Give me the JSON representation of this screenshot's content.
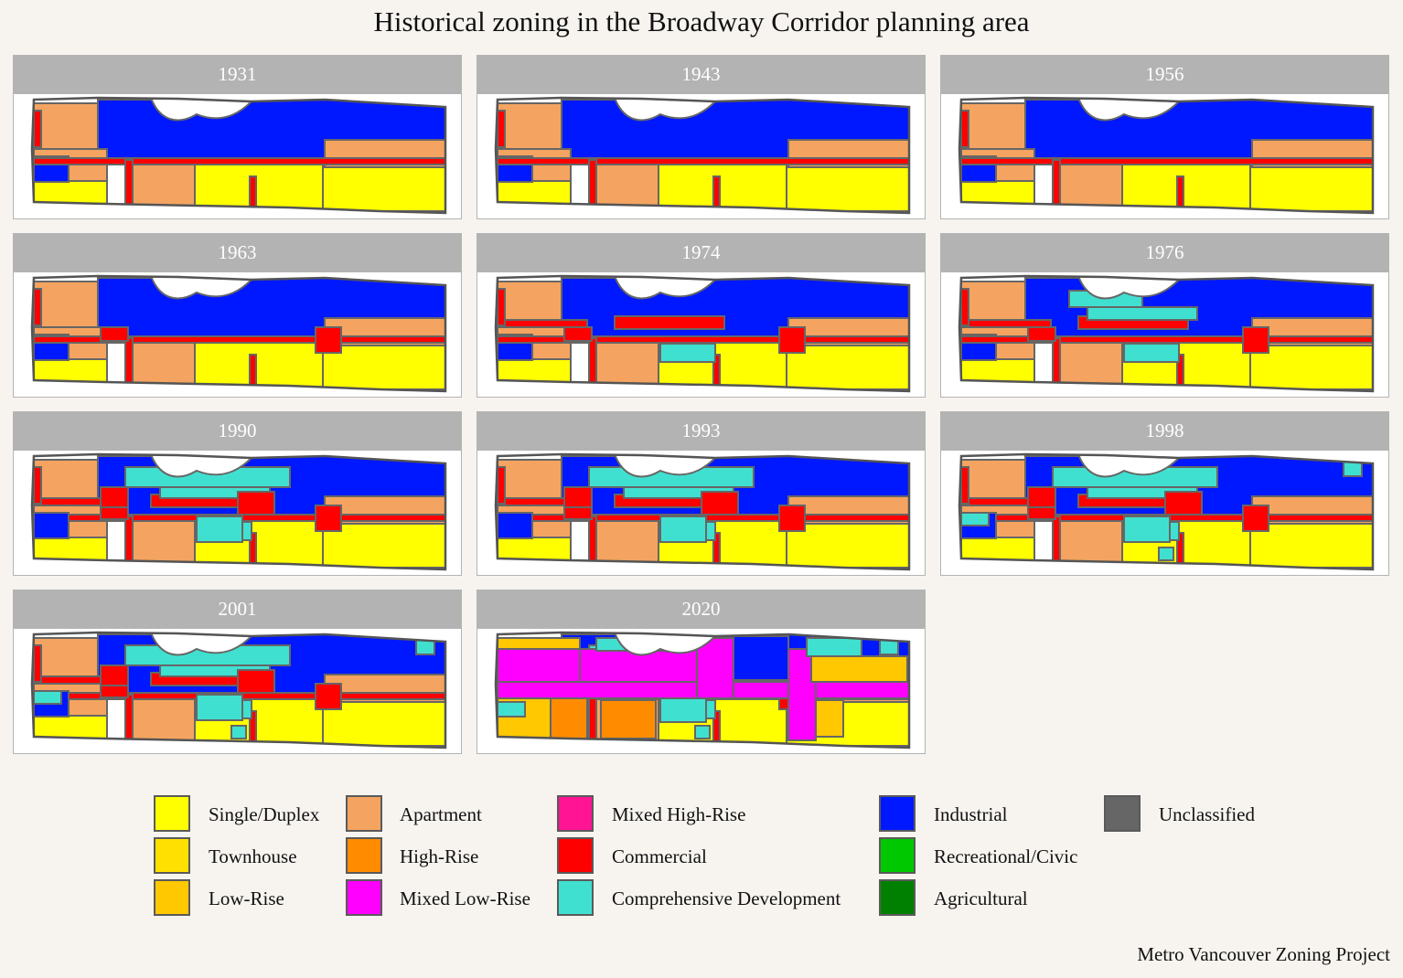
{
  "title": "Historical zoning in the Broadway Corridor planning area",
  "caption": "Metro Vancouver Zoning Project",
  "panels": [
    {
      "year": "1931",
      "era": 1
    },
    {
      "year": "1943",
      "era": 1
    },
    {
      "year": "1956",
      "era": 1
    },
    {
      "year": "1963",
      "era": 2
    },
    {
      "year": "1974",
      "era": 3
    },
    {
      "year": "1976",
      "era": 4
    },
    {
      "year": "1990",
      "era": 5
    },
    {
      "year": "1993",
      "era": 5
    },
    {
      "year": "1998",
      "era": 6
    },
    {
      "year": "2001",
      "era": 6
    },
    {
      "year": "2020",
      "era": 7
    }
  ],
  "legend": [
    {
      "label": "Single/Duplex",
      "color": "#ffff00"
    },
    {
      "label": "Townhouse",
      "color": "#ffe000"
    },
    {
      "label": "Low-Rise",
      "color": "#ffc800"
    },
    {
      "label": "Apartment",
      "color": "#f4a460"
    },
    {
      "label": "High-Rise",
      "color": "#ff8c00"
    },
    {
      "label": "Mixed Low-Rise",
      "color": "#ff00ff"
    },
    {
      "label": "Mixed High-Rise",
      "color": "#ff1493"
    },
    {
      "label": "Commercial",
      "color": "#ff0000"
    },
    {
      "label": "Comprehensive Development",
      "color": "#40e0d0"
    },
    {
      "label": "Industrial",
      "color": "#0018ff"
    },
    {
      "label": "Recreational/Civic",
      "color": "#00c800"
    },
    {
      "label": "Agricultural",
      "color": "#008000"
    },
    {
      "label": "Unclassified",
      "color": "#666666"
    }
  ]
}
